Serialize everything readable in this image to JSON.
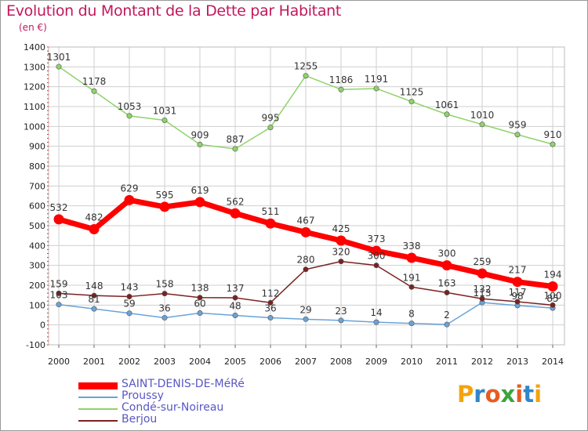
{
  "header": {
    "title": "Evolution du Montant de la Dette par Habitant",
    "subtitle": "(en €)"
  },
  "colors": {
    "title": "#c2185b",
    "legend_text": "#5a57c4",
    "grid": "#cfcfcf"
  },
  "chart_data": {
    "type": "line",
    "x": [
      2000,
      2001,
      2002,
      2003,
      2004,
      2005,
      2006,
      2007,
      2008,
      2009,
      2010,
      2011,
      2012,
      2013,
      2014
    ],
    "ylim": [
      -100,
      1400
    ],
    "yticks": [
      -100,
      0,
      100,
      200,
      300,
      400,
      500,
      600,
      700,
      800,
      900,
      1000,
      1100,
      1200,
      1300,
      1400
    ],
    "grid": true,
    "legend_position": "bottom-left",
    "series": [
      {
        "name": "SAINT-DENIS-DE-MéRé",
        "color": "#ff0000",
        "values": [
          532,
          482,
          629,
          595,
          619,
          562,
          511,
          467,
          425,
          373,
          338,
          300,
          259,
          217,
          194
        ]
      },
      {
        "name": "Proussy",
        "color": "#6aa3d8",
        "values": [
          103,
          81,
          59,
          36,
          60,
          48,
          36,
          29,
          23,
          14,
          8,
          2,
          113,
          98,
          85
        ]
      },
      {
        "name": "Condé-sur-Noireau",
        "color": "#8fd36a",
        "values": [
          1301,
          1178,
          1053,
          1031,
          909,
          887,
          995,
          1255,
          1186,
          1191,
          1125,
          1061,
          1010,
          959,
          910
        ]
      },
      {
        "name": "Berjou",
        "color": "#7a2222",
        "values": [
          159,
          148,
          143,
          158,
          138,
          137,
          112,
          280,
          320,
          300,
          191,
          163,
          132,
          117,
          100
        ]
      }
    ]
  },
  "logo": {
    "text": "Proxiti"
  }
}
